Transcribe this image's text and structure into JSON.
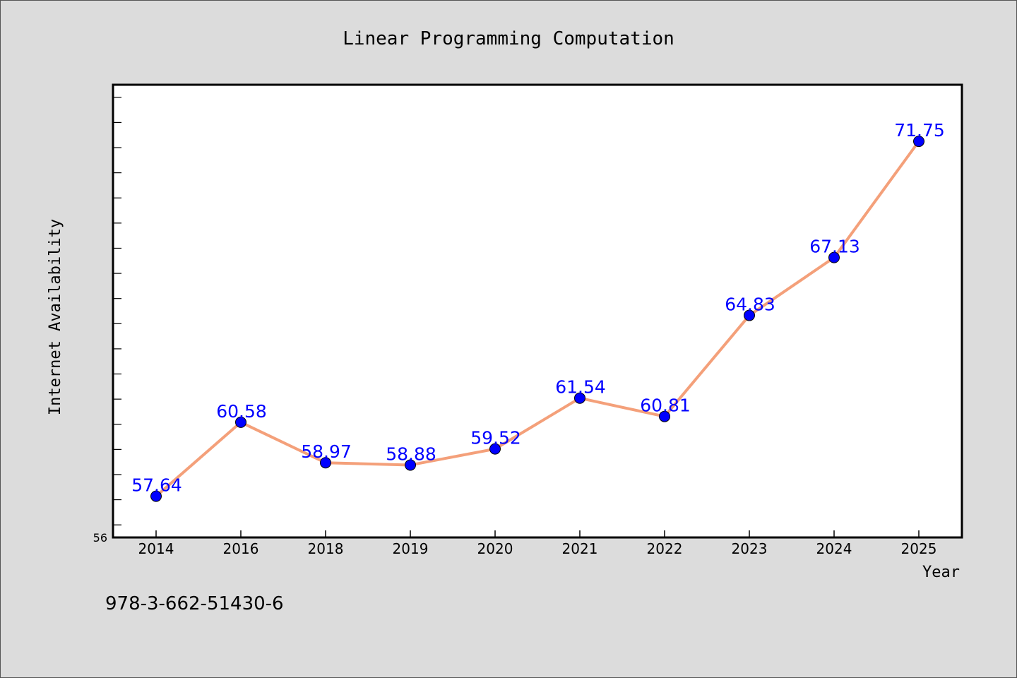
{
  "chart_data": {
    "type": "line",
    "title": "Linear Programming Computation",
    "xlabel": "Year",
    "ylabel": "Internet Availability",
    "categories": [
      "2014",
      "2016",
      "2018",
      "2019",
      "2020",
      "2021",
      "2022",
      "2023",
      "2024",
      "2025"
    ],
    "series": [
      {
        "values": [
          57.64,
          60.58,
          58.97,
          58.88,
          59.52,
          61.54,
          60.81,
          64.83,
          67.13,
          71.75
        ],
        "data_labels": [
          "57.64",
          "60.58",
          "58.97",
          "58.88",
          "59.52",
          "61.54",
          "60.81",
          "64.83",
          "67.13",
          "71.75"
        ]
      }
    ],
    "ylim": [
      56,
      74
    ],
    "y_tick_label": "56",
    "grid": false,
    "legend": "none",
    "colors": {
      "line": "#f4a07a",
      "marker": "#0000ff",
      "data_label": "#0000ff",
      "plot_background": "#ffffff",
      "figure_background": "#dcdcdc"
    }
  },
  "footnote": "978-3-662-51430-6"
}
